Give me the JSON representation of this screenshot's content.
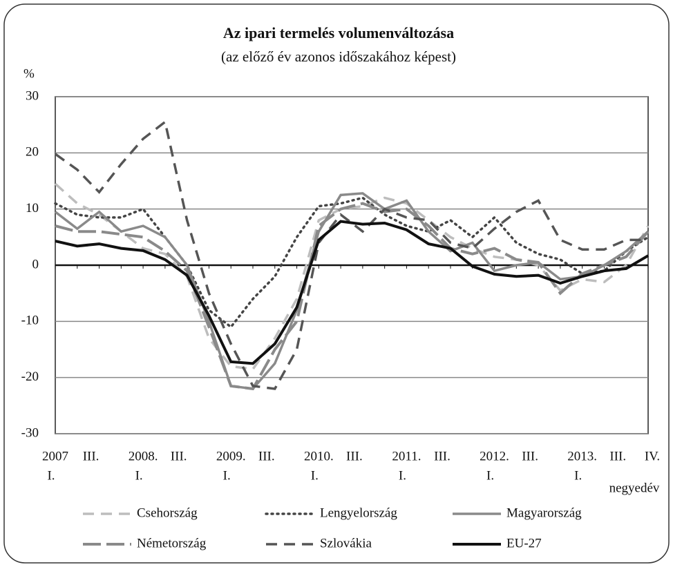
{
  "chart_data": {
    "type": "line",
    "title": "Az ipari termelés volumenváltozása",
    "subtitle": "(az előző év azonos időszakához képest)",
    "y_unit": "%",
    "x_unit": "negyedév",
    "categories": [
      "I.",
      null,
      "III.",
      null,
      "I.",
      null,
      "III.",
      null,
      "I.",
      null,
      "III.",
      null,
      "I.",
      null,
      "III.",
      null,
      "I.",
      null,
      "III.",
      null,
      "I.",
      null,
      "III.",
      null,
      "I.",
      null,
      "III.",
      "IV."
    ],
    "years": [
      "2007",
      "2008.",
      "2009.",
      "2010.",
      "2011.",
      "2012.",
      "2013."
    ],
    "ylim": [
      -30,
      30
    ],
    "yticks": [
      -30,
      -20,
      -10,
      0,
      10,
      20,
      30
    ],
    "grid": true,
    "series": [
      {
        "name": "Csehország",
        "color": "#bdbdbd",
        "style": "dashed",
        "values": [
          14.5,
          11,
          9,
          6,
          3,
          2,
          -2,
          -13,
          -18,
          -18.5,
          -13,
          -6,
          8,
          10,
          10.5,
          12,
          11,
          8,
          5,
          3,
          1.5,
          1,
          0,
          -4.5,
          -2.5,
          -3,
          0,
          7
        ]
      },
      {
        "name": "Lengyelország",
        "color": "#444444",
        "style": "dotted",
        "values": [
          11,
          9,
          8.5,
          8.5,
          10,
          5,
          0,
          -8,
          -11,
          -6,
          -2,
          5,
          10.5,
          11,
          12,
          9,
          7,
          6,
          8,
          5,
          8.5,
          4,
          2,
          1,
          -1.5,
          -1,
          2.5,
          5
        ]
      },
      {
        "name": "Magyarország",
        "color": "#8a8a8a",
        "style": "solid",
        "values": [
          9.5,
          6.5,
          9.5,
          6,
          7,
          5,
          0,
          -10,
          -21.5,
          -22,
          -17.5,
          -8,
          6,
          12.5,
          12.8,
          10,
          11.5,
          6,
          2.5,
          4,
          -1,
          0,
          0.5,
          -2.5,
          -2,
          0,
          2.5,
          6
        ]
      },
      {
        "name": "Németország",
        "color": "#8a8a8a",
        "style": "longdash",
        "values": [
          7,
          6,
          6,
          5.5,
          5,
          2.5,
          -1,
          -11,
          -21.5,
          -22,
          -15,
          -10,
          7,
          10,
          11,
          9.5,
          10,
          7,
          3,
          2,
          3,
          1,
          0.5,
          -5,
          -1.5,
          0,
          1.5,
          6
        ]
      },
      {
        "name": "Szlovákia",
        "color": "#555555",
        "style": "dashed",
        "values": [
          19.8,
          17,
          13,
          18,
          22.5,
          25.5,
          8,
          -5,
          -14,
          -21.5,
          -22,
          -15,
          4,
          9,
          6,
          10,
          8.5,
          8,
          4,
          3,
          6.5,
          9.5,
          11.5,
          4.5,
          2.8,
          2.8,
          4.5,
          4.5
        ]
      },
      {
        "name": "EU-27",
        "color": "#111111",
        "style": "thick",
        "values": [
          4.3,
          3.4,
          3.8,
          3.0,
          2.6,
          1.0,
          -1.8,
          -9,
          -17.2,
          -17.5,
          -14,
          -7.5,
          4.5,
          7.8,
          7.3,
          7.5,
          6.3,
          3.8,
          3.0,
          -0.2,
          -1.6,
          -2.0,
          -1.8,
          -3.2,
          -2.0,
          -1.0,
          -0.6,
          1.7
        ]
      }
    ]
  }
}
